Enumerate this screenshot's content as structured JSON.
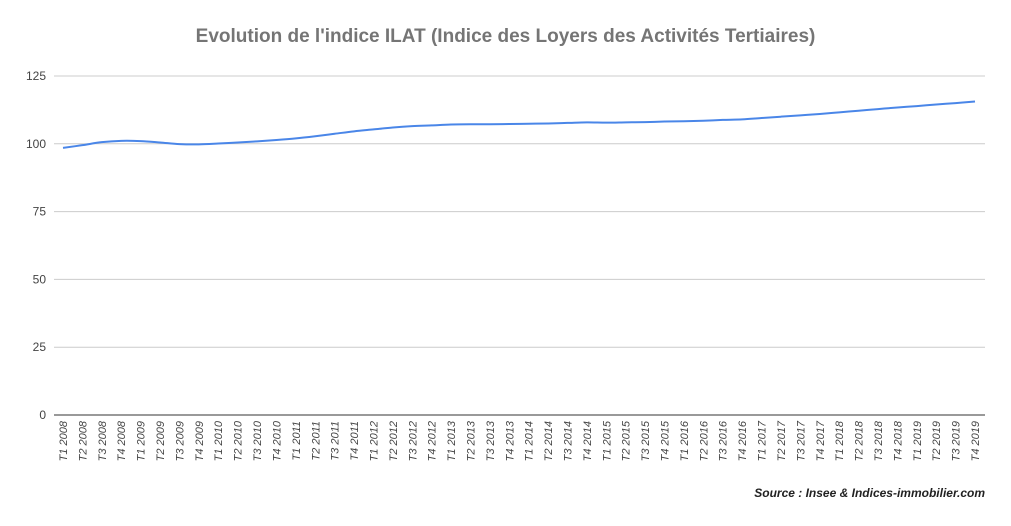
{
  "chart_data": {
    "type": "line",
    "title": "Evolution de l'indice ILAT (Indice des Loyers des Activités Tertiaires)",
    "xlabel": "",
    "ylabel": "",
    "ylim": [
      0,
      125
    ],
    "yticks": [
      0,
      25,
      50,
      75,
      100,
      125
    ],
    "grid": true,
    "legend": "none",
    "line_color": "#4a86e8",
    "categories": [
      "T1 2008",
      "T2 2008",
      "T3 2008",
      "T4 2008",
      "T1 2009",
      "T2 2009",
      "T3 2009",
      "T4 2009",
      "T1 2010",
      "T2 2010",
      "T3 2010",
      "T4 2010",
      "T1 2011",
      "T2 2011",
      "T3 2011",
      "T4 2011",
      "T1 2012",
      "T2 2012",
      "T3 2012",
      "T4 2012",
      "T1 2013",
      "T2 2013",
      "T3 2013",
      "T4 2013",
      "T1 2014",
      "T2 2014",
      "T3 2014",
      "T4 2014",
      "T1 2015",
      "T2 2015",
      "T3 2015",
      "T4 2015",
      "T1 2016",
      "T2 2016",
      "T3 2016",
      "T4 2016",
      "T1 2017",
      "T2 2017",
      "T3 2017",
      "T4 2017",
      "T1 2018",
      "T2 2018",
      "T3 2018",
      "T4 2018",
      "T1 2019",
      "T2 2019",
      "T3 2019",
      "T4 2019"
    ],
    "values": [
      98.5,
      99.5,
      100.6,
      101.1,
      101.0,
      100.5,
      99.9,
      99.8,
      100.1,
      100.5,
      100.9,
      101.4,
      102.0,
      102.8,
      103.7,
      104.6,
      105.3,
      106.0,
      106.5,
      106.8,
      107.1,
      107.2,
      107.2,
      107.3,
      107.4,
      107.5,
      107.7,
      107.9,
      107.8,
      107.9,
      108.0,
      108.2,
      108.3,
      108.5,
      108.8,
      109.0,
      109.5,
      110.0,
      110.5,
      111.0,
      111.6,
      112.2,
      112.8,
      113.4,
      113.9,
      114.5,
      115.0,
      115.6
    ]
  },
  "source": "Source : Insee & Indices-immobilier.com"
}
